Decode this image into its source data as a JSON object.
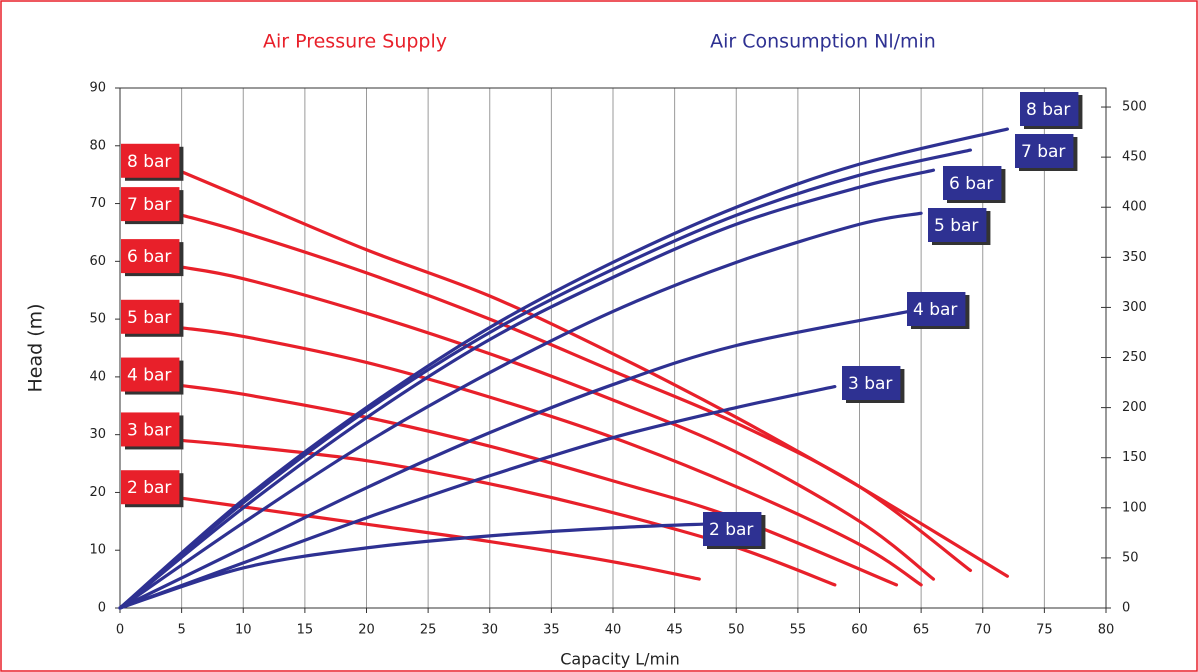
{
  "chart_data": {
    "type": "line",
    "legend_titles": [
      "Air Pressure Supply",
      "Air Consumption Nl/min"
    ],
    "xlabel": "Capacity L/min",
    "ylabel": "Head (m)",
    "xlim": [
      0,
      80
    ],
    "xticks": [
      0,
      5,
      10,
      15,
      20,
      25,
      30,
      35,
      40,
      45,
      50,
      55,
      60,
      65,
      70,
      75,
      80
    ],
    "ylim": [
      0,
      90
    ],
    "yticks": [
      0,
      10,
      20,
      30,
      40,
      50,
      60,
      70,
      80,
      90
    ],
    "y2lim": [
      0,
      519
    ],
    "y2ticks": [
      0,
      50,
      100,
      150,
      200,
      250,
      300,
      350,
      400,
      450,
      500
    ],
    "grid": "x",
    "series": [
      {
        "name": "8 bar",
        "color": "#e8202a",
        "x": [
          5,
          10,
          20,
          30,
          40,
          50,
          60,
          72
        ],
        "values": [
          75.5,
          71,
          62,
          54,
          44,
          33,
          21,
          5.5
        ]
      },
      {
        "name": "7 bar",
        "color": "#e8202a",
        "x": [
          5,
          10,
          20,
          30,
          40,
          50,
          60,
          69
        ],
        "values": [
          68,
          65,
          58,
          50,
          41,
          32,
          21,
          6.5
        ]
      },
      {
        "name": "6 bar",
        "color": "#e8202a",
        "x": [
          5,
          10,
          20,
          30,
          40,
          50,
          60,
          66
        ],
        "values": [
          59,
          57,
          51,
          44,
          36,
          27,
          15,
          5
        ]
      },
      {
        "name": "5 bar",
        "color": "#e8202a",
        "x": [
          5,
          10,
          20,
          30,
          40,
          50,
          60,
          65
        ],
        "values": [
          48.5,
          47,
          42.5,
          36.5,
          29.5,
          21,
          11,
          4
        ]
      },
      {
        "name": "4 bar",
        "color": "#e8202a",
        "x": [
          5,
          10,
          20,
          30,
          40,
          50,
          63
        ],
        "values": [
          38.5,
          37,
          33,
          28,
          22,
          15.5,
          4
        ]
      },
      {
        "name": "3 bar",
        "color": "#e8202a",
        "x": [
          5,
          10,
          20,
          30,
          40,
          50,
          58
        ],
        "values": [
          29,
          28,
          25.5,
          21.5,
          16.5,
          10.5,
          4
        ]
      },
      {
        "name": "2 bar",
        "color": "#e8202a",
        "x": [
          5,
          10,
          20,
          30,
          40,
          47
        ],
        "values": [
          19,
          17.5,
          14.5,
          11.5,
          8,
          5
        ]
      },
      {
        "name": "8 bar",
        "color": "#2e3192",
        "axis": "y2",
        "x": [
          0,
          10,
          20,
          30,
          40,
          50,
          60,
          72
        ],
        "values": [
          0,
          108,
          200,
          280,
          345,
          400,
          443,
          478
        ]
      },
      {
        "name": "7 bar",
        "color": "#2e3192",
        "axis": "y2",
        "x": [
          0,
          10,
          20,
          30,
          40,
          50,
          60,
          69
        ],
        "values": [
          0,
          105,
          197,
          275,
          338,
          392,
          432,
          457
        ]
      },
      {
        "name": "6 bar",
        "color": "#2e3192",
        "axis": "y2",
        "x": [
          0,
          10,
          20,
          30,
          40,
          50,
          60,
          66
        ],
        "values": [
          0,
          100,
          190,
          268,
          330,
          383,
          420,
          437
        ]
      },
      {
        "name": "5 bar",
        "color": "#2e3192",
        "axis": "y2",
        "x": [
          0,
          10,
          20,
          30,
          40,
          50,
          60,
          65
        ],
        "values": [
          0,
          85,
          165,
          235,
          296,
          345,
          383,
          394
        ]
      },
      {
        "name": "4 bar",
        "color": "#2e3192",
        "axis": "y2",
        "x": [
          0,
          10,
          20,
          30,
          40,
          50,
          64
        ],
        "values": [
          0,
          60,
          120,
          175,
          223,
          262,
          296
        ]
      },
      {
        "name": "3 bar",
        "color": "#2e3192",
        "axis": "y2",
        "x": [
          0,
          10,
          20,
          30,
          40,
          50,
          58
        ],
        "values": [
          0,
          45,
          90,
          132,
          170,
          200,
          221
        ]
      },
      {
        "name": "2 bar",
        "color": "#2e3192",
        "axis": "y2",
        "x": [
          0,
          10,
          20,
          30,
          40,
          48
        ],
        "values": [
          0,
          40,
          60,
          72,
          80,
          84
        ]
      }
    ]
  }
}
